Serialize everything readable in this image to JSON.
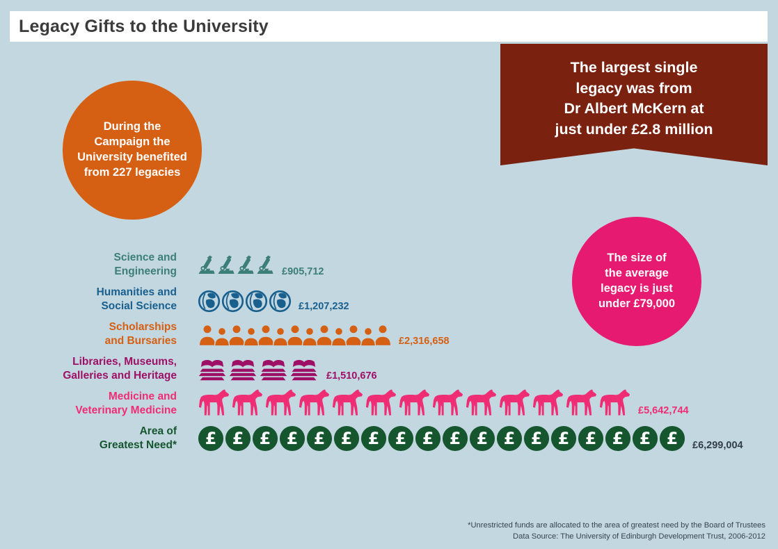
{
  "title_bar": {
    "title": "Legacy Gifts to the University"
  },
  "callouts": {
    "banner": {
      "color": "#7a2110",
      "lines": [
        "The largest single",
        "legacy was from",
        "Dr Albert McKern at",
        "just under £2.8 million"
      ]
    },
    "orange_circle": {
      "color": "#d55f12",
      "lines": [
        "During the",
        "Campaign the",
        "University benefited",
        "from 227 legacies"
      ]
    },
    "pink_circle": {
      "color": "#e61a70",
      "lines": [
        "The size of",
        "the average",
        "legacy is just",
        "under £79,000"
      ]
    }
  },
  "chart_data": {
    "type": "bar",
    "subtype": "pictogram",
    "unit": "GBP",
    "title": "Legacy Gifts to the University",
    "rows": [
      {
        "key": "science",
        "label_line1": "Science and",
        "label_line2": "Engineering",
        "value": "£905,712",
        "value_num": 905712,
        "icon": "microscope",
        "icon_count": 4,
        "color": "#3c7e79",
        "value_color": "#3c7e79"
      },
      {
        "key": "humanities",
        "label_line1": "Humanities and",
        "label_line2": "Social Science",
        "value": "£1,207,232",
        "value_num": 1207232,
        "icon": "globe",
        "icon_count": 4,
        "color": "#19608f",
        "value_color": "#19608f"
      },
      {
        "key": "scholarships",
        "label_line1": "Scholarships",
        "label_line2": "and Bursaries",
        "value": "£2,316,658",
        "value_num": 2316658,
        "icon": "person",
        "icon_count": 13,
        "color": "#d55f12",
        "value_color": "#d55f12"
      },
      {
        "key": "libraries",
        "label_line1": "Libraries, Museums,",
        "label_line2": "Galleries and Heritage",
        "value": "£1,510,676",
        "value_num": 1510676,
        "icon": "books",
        "icon_count": 4,
        "color": "#9e1066",
        "value_color": "#9e1066"
      },
      {
        "key": "medicine",
        "label_line1": "Medicine and",
        "label_line2": "Veterinary Medicine",
        "value": "£5,642,744",
        "value_num": 5642744,
        "icon": "horse",
        "icon_count": 13,
        "color": "#ee2d74",
        "value_color": "#ee2d74"
      },
      {
        "key": "greatest-need",
        "label_line1": "Area of",
        "label_line2": "Greatest Need*",
        "value": "£6,299,004",
        "value_num": 6299004,
        "icon": "coin",
        "icon_count": 18,
        "color": "#15562f",
        "value_color": "#323f48"
      }
    ],
    "footnote1": "*Unrestricted  funds are allocated to the area of greatest need by the Board of Trustees",
    "footnote2": "Data Source: The University of Edinburgh Development Trust, 2006-2012"
  }
}
